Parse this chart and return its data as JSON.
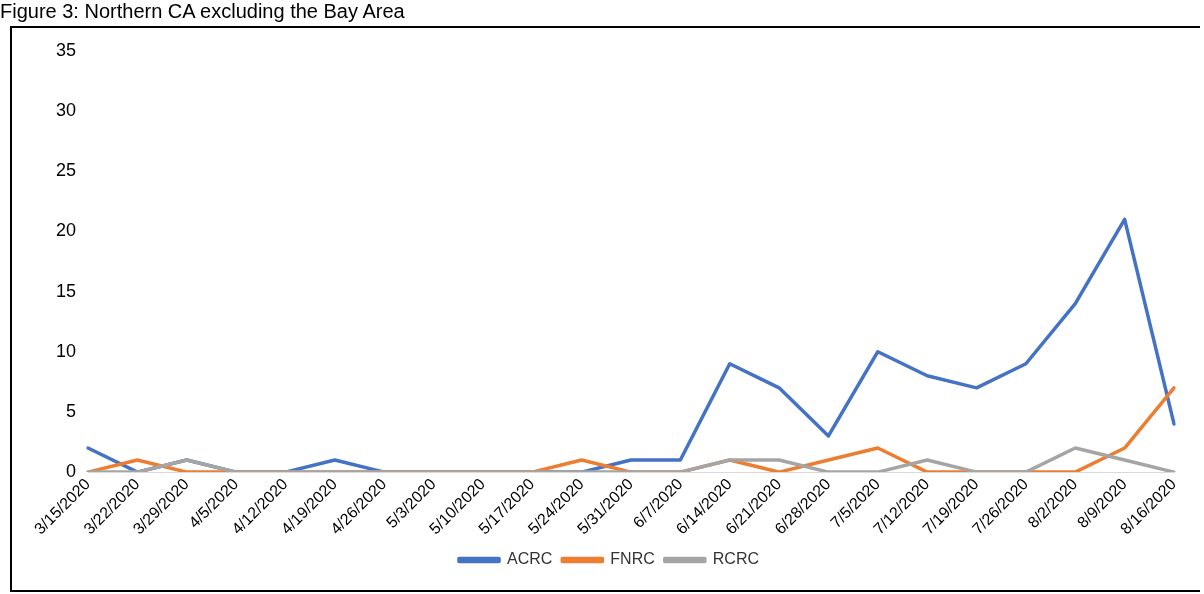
{
  "chart_data": {
    "type": "line",
    "title": "Figure 3: Northern CA excluding the Bay Area",
    "categories": [
      "3/15/2020",
      "3/22/2020",
      "3/29/2020",
      "4/5/2020",
      "4/12/2020",
      "4/19/2020",
      "4/26/2020",
      "5/3/2020",
      "5/10/2020",
      "5/17/2020",
      "5/24/2020",
      "5/31/2020",
      "6/7/2020",
      "6/14/2020",
      "6/21/2020",
      "6/28/2020",
      "7/5/2020",
      "7/12/2020",
      "7/19/2020",
      "7/26/2020",
      "8/2/2020",
      "8/9/2020",
      "8/16/2020"
    ],
    "series": [
      {
        "name": "ACRC",
        "color": "#4472c4",
        "values": [
          2,
          0,
          1,
          0,
          0,
          1,
          0,
          0,
          0,
          0,
          0,
          1,
          1,
          9,
          7,
          3,
          10,
          8,
          7,
          9,
          14,
          21,
          4
        ]
      },
      {
        "name": "FNRC",
        "color": "#ed7d31",
        "values": [
          0,
          1,
          0,
          0,
          0,
          0,
          0,
          0,
          0,
          0,
          1,
          0,
          0,
          1,
          0,
          1,
          2,
          0,
          0,
          0,
          0,
          2,
          7
        ]
      },
      {
        "name": "RCRC",
        "color": "#a5a5a5",
        "values": [
          0,
          0,
          1,
          0,
          0,
          0,
          0,
          0,
          0,
          0,
          0,
          0,
          0,
          1,
          1,
          0,
          0,
          1,
          0,
          0,
          2,
          1,
          0
        ]
      }
    ],
    "ylim": [
      0,
      35
    ],
    "yticks": [
      0,
      5,
      10,
      15,
      20,
      25,
      30,
      35
    ],
    "grid": false,
    "legend": "bottom",
    "marker": "none",
    "line_style": "solid"
  }
}
